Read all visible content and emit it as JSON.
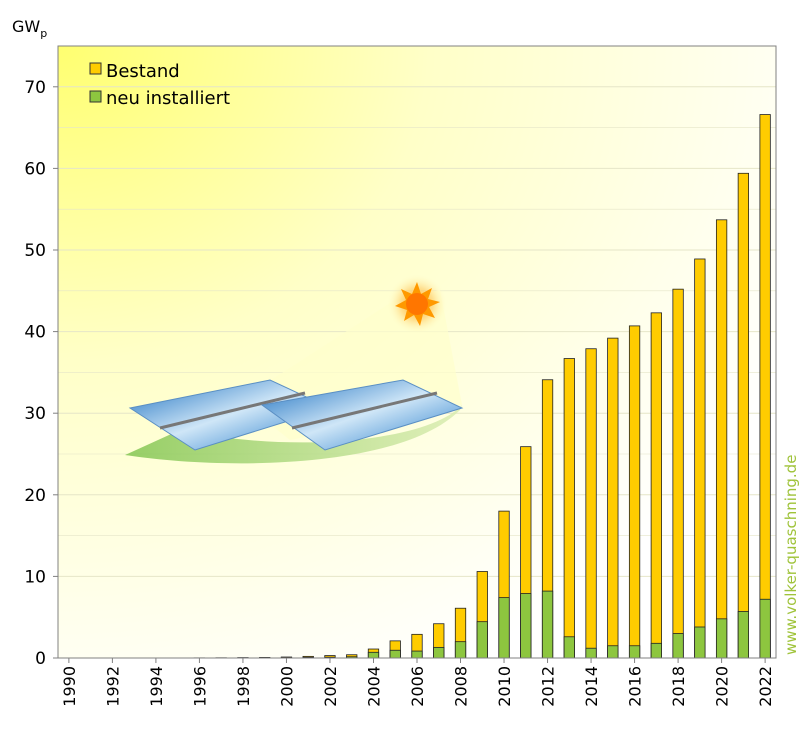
{
  "chart_data": {
    "type": "bar",
    "ylabel": "GW",
    "ylabel_sub": "p",
    "ylim": [
      0,
      75
    ],
    "yticks": [
      "0",
      "10",
      "20",
      "30",
      "40",
      "50",
      "60",
      "70"
    ],
    "grid": true,
    "legend_position": "top-left",
    "categories": [
      "1990",
      "1991",
      "1992",
      "1993",
      "1994",
      "1995",
      "1996",
      "1997",
      "1998",
      "1999",
      "2000",
      "2001",
      "2002",
      "2003",
      "2004",
      "2005",
      "2006",
      "2007",
      "2008",
      "2009",
      "2010",
      "2011",
      "2012",
      "2013",
      "2014",
      "2015",
      "2016",
      "2017",
      "2018",
      "2019",
      "2020",
      "2021",
      "2022"
    ],
    "x_tick_labels": [
      "1990",
      "1992",
      "1994",
      "1996",
      "1998",
      "2000",
      "2002",
      "2004",
      "2006",
      "2008",
      "2010",
      "2012",
      "2014",
      "2016",
      "2018",
      "2020",
      "2022"
    ],
    "series": [
      {
        "name": "Bestand",
        "color": "#ffcc00",
        "values": [
          0.002,
          0.003,
          0.005,
          0.007,
          0.01,
          0.012,
          0.02,
          0.03,
          0.05,
          0.07,
          0.12,
          0.2,
          0.3,
          0.4,
          1.1,
          2.1,
          2.9,
          4.2,
          6.1,
          10.6,
          18.0,
          25.9,
          34.1,
          36.7,
          37.9,
          39.2,
          40.7,
          42.3,
          45.2,
          48.9,
          53.7,
          59.4,
          66.6
        ]
      },
      {
        "name": "neu installiert",
        "color": "#8dc63f",
        "values": [
          0.001,
          0.001,
          0.002,
          0.002,
          0.003,
          0.002,
          0.008,
          0.01,
          0.02,
          0.02,
          0.05,
          0.08,
          0.1,
          0.15,
          0.7,
          0.95,
          0.85,
          1.3,
          2.0,
          4.45,
          7.4,
          7.9,
          8.2,
          2.6,
          1.2,
          1.5,
          1.5,
          1.8,
          3.0,
          3.8,
          4.8,
          5.7,
          7.2
        ]
      }
    ]
  },
  "watermark": "www.volker-quaschning.de",
  "colors": {
    "background_glow": "#ffff99",
    "plot_border": "#808080",
    "grid": "#e6e6c8"
  }
}
